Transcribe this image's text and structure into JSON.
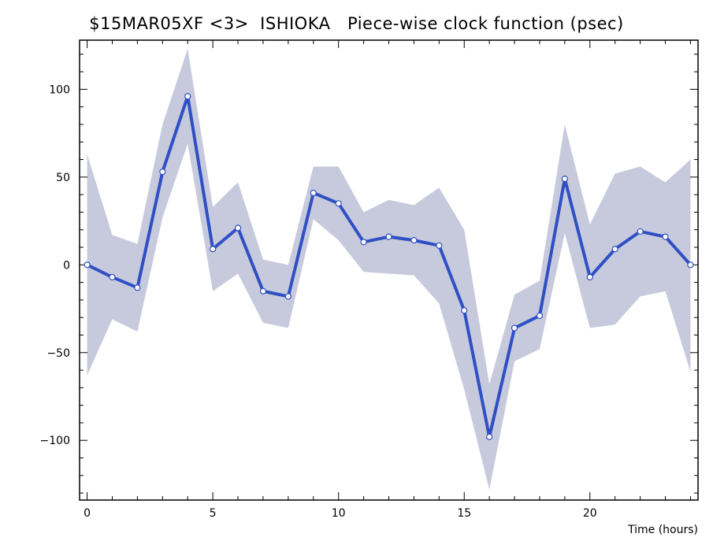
{
  "chart_data": {
    "type": "line",
    "title": "$15MAR05XF <3>  ISHIOKA   Piece-wise clock function (psec)",
    "xlabel": "Time (hours)",
    "ylabel": "",
    "xlim": [
      -0.3,
      24.3
    ],
    "ylim": [
      -134,
      128
    ],
    "x_ticks": [
      0,
      5,
      10,
      15,
      20
    ],
    "y_ticks": [
      -100,
      -50,
      0,
      50,
      100
    ],
    "x": [
      0,
      1,
      2,
      3,
      4,
      5,
      6,
      7,
      8,
      9,
      10,
      11,
      12,
      13,
      14,
      15,
      16,
      17,
      18,
      19,
      20,
      21,
      22,
      23,
      24
    ],
    "series": [
      {
        "values": [
          0,
          -7,
          -13,
          53,
          96,
          9,
          21,
          -15,
          -18,
          41,
          35,
          13,
          16,
          14,
          11,
          -26,
          -98,
          -36,
          -29,
          49,
          -7,
          9,
          19,
          16,
          0
        ],
        "color": "#2f4fc4"
      }
    ],
    "band": {
      "upper": [
        63,
        17,
        12,
        80,
        123,
        33,
        47,
        3,
        0,
        56,
        56,
        30,
        37,
        34,
        44,
        20,
        -68,
        -17,
        -9,
        80,
        23,
        52,
        56,
        47,
        60
      ],
      "lower": [
        -63,
        -31,
        -38,
        27,
        69,
        -15,
        -5,
        -33,
        -36,
        26,
        14,
        -4,
        -5,
        -6,
        -22,
        -71,
        -128,
        -55,
        -48,
        18,
        -36,
        -34,
        -18,
        -15,
        -61
      ],
      "color": "#c6cadc"
    },
    "grid": false,
    "legend": "none"
  }
}
